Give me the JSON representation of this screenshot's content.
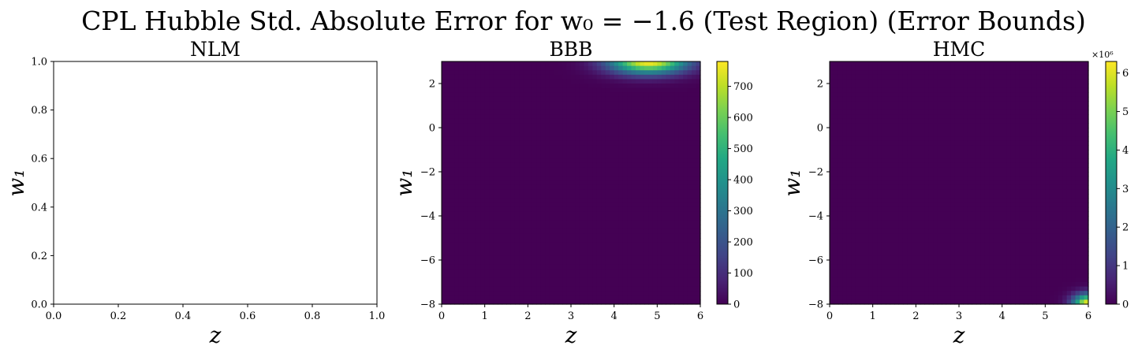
{
  "figure": {
    "title": "CPL Hubble Std. Absolute Error for w₀ = −1.6 (Test Region) (Error Bounds)"
  },
  "chart_data": [
    {
      "type": "heatmap",
      "title": "NLM",
      "xlabel": "z",
      "ylabel": "w₁",
      "xlim": [
        0,
        1
      ],
      "ylim": [
        0,
        1
      ],
      "xticks": [
        "0.0",
        "0.2",
        "0.4",
        "0.6",
        "0.8",
        "1.0"
      ],
      "yticks": [
        "0.0",
        "0.2",
        "0.4",
        "0.6",
        "0.8",
        "1.0"
      ],
      "empty": true,
      "colorbar": null
    },
    {
      "type": "heatmap",
      "title": "BBB",
      "xlabel": "z",
      "ylabel": "w₁",
      "xlim": [
        0,
        6
      ],
      "ylim": [
        -8,
        3
      ],
      "xticks": [
        "0",
        "1",
        "2",
        "3",
        "4",
        "5",
        "6"
      ],
      "yticks": [
        "−8",
        "−6",
        "−4",
        "−2",
        "0",
        "2"
      ],
      "colormap": "viridis",
      "hotspot": {
        "z_center": 4.8,
        "w1_center": 3.0,
        "peak": 780,
        "z_spread": 0.9,
        "w1_spread": 0.55
      },
      "colorbar": {
        "min": 0,
        "max": 780,
        "ticks": [
          "0",
          "100",
          "200",
          "300",
          "400",
          "500",
          "600",
          "700"
        ],
        "multiplier": ""
      }
    },
    {
      "type": "heatmap",
      "title": "HMC",
      "xlabel": "z",
      "ylabel": "w₁",
      "xlim": [
        0,
        6
      ],
      "ylim": [
        -8,
        3
      ],
      "xticks": [
        "0",
        "1",
        "2",
        "3",
        "4",
        "5",
        "6"
      ],
      "yticks": [
        "−8",
        "−6",
        "−4",
        "−2",
        "0",
        "2"
      ],
      "colormap": "viridis",
      "hotspot": {
        "z_center": 6.0,
        "w1_center": -8.0,
        "peak": 6.3,
        "z_spread": 0.35,
        "w1_spread": 0.45
      },
      "colorbar": {
        "min": 0,
        "max": 6.3,
        "ticks": [
          "0",
          "1",
          "2",
          "3",
          "4",
          "5",
          "6"
        ],
        "multiplier": "×10⁶"
      }
    }
  ]
}
